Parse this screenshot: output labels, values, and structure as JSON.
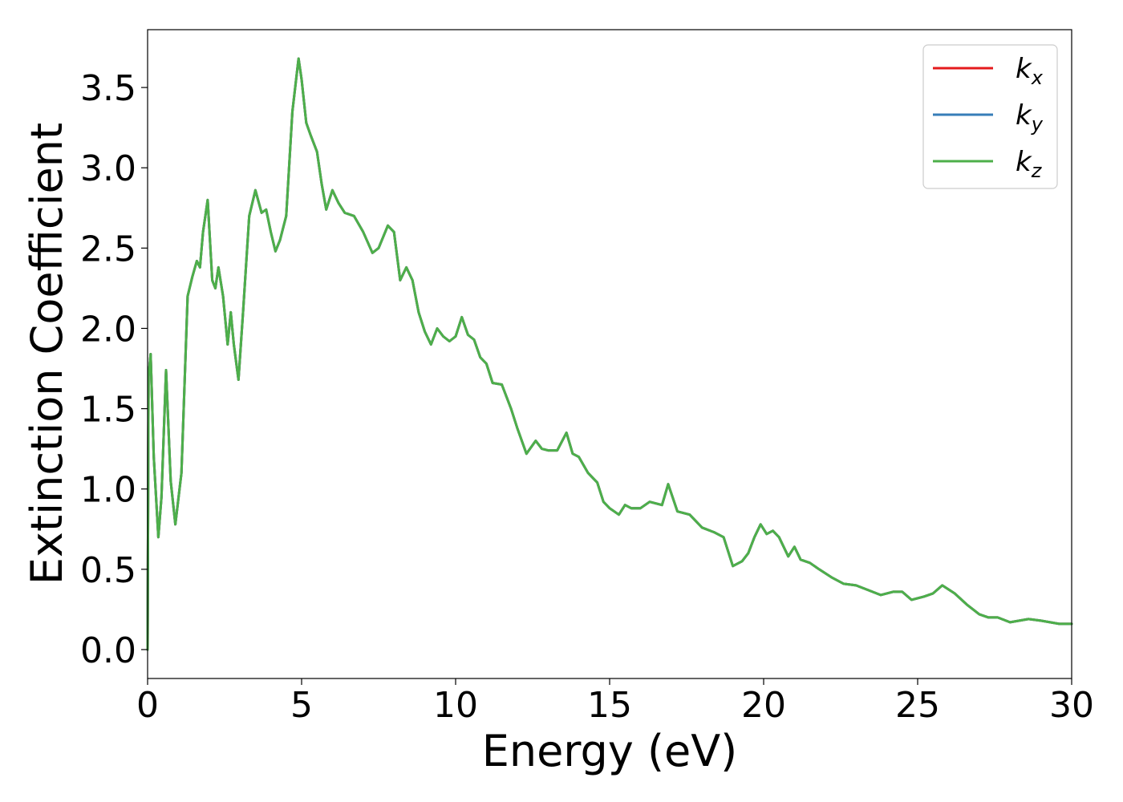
{
  "chart_data": {
    "type": "line",
    "xlabel": "Energy (eV)",
    "ylabel": "Extinction Coefficient",
    "xlim": [
      0,
      30
    ],
    "ylim": [
      -0.18,
      3.86
    ],
    "xticks": [
      0,
      5,
      10,
      15,
      20,
      25,
      30
    ],
    "xtick_labels": [
      "0",
      "5",
      "10",
      "15",
      "20",
      "25",
      "30"
    ],
    "yticks": [
      0.0,
      0.5,
      1.0,
      1.5,
      2.0,
      2.5,
      3.0,
      3.5
    ],
    "ytick_labels": [
      "0.0",
      "0.5",
      "1.0",
      "1.5",
      "2.0",
      "2.5",
      "3.0",
      "3.5"
    ],
    "grid": false,
    "legend_position": "top-right",
    "series": [
      {
        "name": "k_x",
        "label_base": "k",
        "label_sub": "x",
        "color": "#e41a1c",
        "x": [
          0.0,
          0.03,
          0.1,
          0.2,
          0.35,
          0.45,
          0.6,
          0.75,
          0.9,
          1.1,
          1.3,
          1.45,
          1.6,
          1.7,
          1.8,
          1.95,
          2.1,
          2.2,
          2.3,
          2.45,
          2.6,
          2.7,
          2.8,
          2.95,
          3.1,
          3.3,
          3.5,
          3.7,
          3.85,
          4.0,
          4.15,
          4.3,
          4.5,
          4.7,
          4.9,
          5.0,
          5.15,
          5.3,
          5.5,
          5.65,
          5.8,
          6.0,
          6.2,
          6.4,
          6.7,
          7.0,
          7.3,
          7.5,
          7.8,
          8.0,
          8.2,
          8.4,
          8.6,
          8.8,
          9.0,
          9.2,
          9.4,
          9.6,
          9.8,
          10.0,
          10.2,
          10.4,
          10.6,
          10.8,
          11.0,
          11.2,
          11.5,
          11.8,
          12.0,
          12.3,
          12.6,
          12.8,
          13.0,
          13.3,
          13.6,
          13.8,
          14.0,
          14.3,
          14.6,
          14.8,
          15.0,
          15.3,
          15.5,
          15.7,
          16.0,
          16.3,
          16.7,
          16.9,
          17.2,
          17.6,
          18.0,
          18.4,
          18.7,
          19.0,
          19.3,
          19.5,
          19.7,
          19.9,
          20.1,
          20.3,
          20.5,
          20.8,
          21.0,
          21.2,
          21.5,
          21.8,
          22.2,
          22.6,
          23.0,
          23.4,
          23.8,
          24.2,
          24.5,
          24.8,
          25.2,
          25.5,
          25.8,
          26.2,
          26.6,
          27.0,
          27.3,
          27.6,
          28.0,
          28.3,
          28.6,
          29.0,
          29.3,
          29.6,
          30.0
        ],
        "y": [
          0.0,
          1.7,
          1.84,
          1.2,
          0.7,
          0.95,
          1.74,
          1.05,
          0.78,
          1.1,
          2.2,
          2.32,
          2.42,
          2.38,
          2.6,
          2.8,
          2.3,
          2.25,
          2.38,
          2.2,
          1.9,
          2.1,
          1.9,
          1.68,
          2.1,
          2.7,
          2.86,
          2.72,
          2.74,
          2.6,
          2.48,
          2.55,
          2.7,
          3.35,
          3.68,
          3.55,
          3.28,
          3.2,
          3.1,
          2.9,
          2.74,
          2.86,
          2.78,
          2.72,
          2.7,
          2.6,
          2.47,
          2.5,
          2.64,
          2.6,
          2.3,
          2.38,
          2.3,
          2.1,
          1.98,
          1.9,
          2.0,
          1.95,
          1.92,
          1.95,
          2.07,
          1.96,
          1.93,
          1.82,
          1.78,
          1.66,
          1.65,
          1.5,
          1.38,
          1.22,
          1.3,
          1.25,
          1.24,
          1.24,
          1.35,
          1.22,
          1.2,
          1.1,
          1.04,
          0.92,
          0.88,
          0.84,
          0.9,
          0.88,
          0.88,
          0.92,
          0.9,
          1.03,
          0.86,
          0.84,
          0.76,
          0.73,
          0.7,
          0.52,
          0.55,
          0.6,
          0.7,
          0.78,
          0.72,
          0.74,
          0.7,
          0.58,
          0.64,
          0.56,
          0.54,
          0.5,
          0.45,
          0.41,
          0.4,
          0.37,
          0.34,
          0.36,
          0.36,
          0.31,
          0.33,
          0.35,
          0.4,
          0.35,
          0.28,
          0.22,
          0.2,
          0.2,
          0.17,
          0.18,
          0.19,
          0.18,
          0.17,
          0.16,
          0.16
        ]
      },
      {
        "name": "k_y",
        "label_base": "k",
        "label_sub": "y",
        "color": "#377eb8",
        "x": [
          0.0,
          0.03,
          0.1,
          0.2,
          0.35,
          0.45,
          0.6,
          0.75,
          0.9,
          1.1,
          1.3,
          1.45,
          1.6,
          1.7,
          1.8,
          1.95,
          2.1,
          2.2,
          2.3,
          2.45,
          2.6,
          2.7,
          2.8,
          2.95,
          3.1,
          3.3,
          3.5,
          3.7,
          3.85,
          4.0,
          4.15,
          4.3,
          4.5,
          4.7,
          4.9,
          5.0,
          5.15,
          5.3,
          5.5,
          5.65,
          5.8,
          6.0,
          6.2,
          6.4,
          6.7,
          7.0,
          7.3,
          7.5,
          7.8,
          8.0,
          8.2,
          8.4,
          8.6,
          8.8,
          9.0,
          9.2,
          9.4,
          9.6,
          9.8,
          10.0,
          10.2,
          10.4,
          10.6,
          10.8,
          11.0,
          11.2,
          11.5,
          11.8,
          12.0,
          12.3,
          12.6,
          12.8,
          13.0,
          13.3,
          13.6,
          13.8,
          14.0,
          14.3,
          14.6,
          14.8,
          15.0,
          15.3,
          15.5,
          15.7,
          16.0,
          16.3,
          16.7,
          16.9,
          17.2,
          17.6,
          18.0,
          18.4,
          18.7,
          19.0,
          19.3,
          19.5,
          19.7,
          19.9,
          20.1,
          20.3,
          20.5,
          20.8,
          21.0,
          21.2,
          21.5,
          21.8,
          22.2,
          22.6,
          23.0,
          23.4,
          23.8,
          24.2,
          24.5,
          24.8,
          25.2,
          25.5,
          25.8,
          26.2,
          26.6,
          27.0,
          27.3,
          27.6,
          28.0,
          28.3,
          28.6,
          29.0,
          29.3,
          29.6,
          30.0
        ],
        "y": [
          0.0,
          1.7,
          1.84,
          1.2,
          0.7,
          0.95,
          1.74,
          1.05,
          0.78,
          1.1,
          2.2,
          2.32,
          2.42,
          2.38,
          2.6,
          2.8,
          2.3,
          2.25,
          2.38,
          2.2,
          1.9,
          2.1,
          1.9,
          1.68,
          2.1,
          2.7,
          2.86,
          2.72,
          2.74,
          2.6,
          2.48,
          2.55,
          2.7,
          3.35,
          3.68,
          3.55,
          3.28,
          3.2,
          3.1,
          2.9,
          2.74,
          2.86,
          2.78,
          2.72,
          2.7,
          2.6,
          2.47,
          2.5,
          2.64,
          2.6,
          2.3,
          2.38,
          2.3,
          2.1,
          1.98,
          1.9,
          2.0,
          1.95,
          1.92,
          1.95,
          2.07,
          1.96,
          1.93,
          1.82,
          1.78,
          1.66,
          1.65,
          1.5,
          1.38,
          1.22,
          1.3,
          1.25,
          1.24,
          1.24,
          1.35,
          1.22,
          1.2,
          1.1,
          1.04,
          0.92,
          0.88,
          0.84,
          0.9,
          0.88,
          0.88,
          0.92,
          0.9,
          1.03,
          0.86,
          0.84,
          0.76,
          0.73,
          0.7,
          0.52,
          0.55,
          0.6,
          0.7,
          0.78,
          0.72,
          0.74,
          0.7,
          0.58,
          0.64,
          0.56,
          0.54,
          0.5,
          0.45,
          0.41,
          0.4,
          0.37,
          0.34,
          0.36,
          0.36,
          0.31,
          0.33,
          0.35,
          0.4,
          0.35,
          0.28,
          0.22,
          0.2,
          0.2,
          0.17,
          0.18,
          0.19,
          0.18,
          0.17,
          0.16,
          0.16
        ]
      },
      {
        "name": "k_z",
        "label_base": "k",
        "label_sub": "z",
        "color": "#4daf4a",
        "x": [
          0.0,
          0.03,
          0.1,
          0.2,
          0.35,
          0.45,
          0.6,
          0.75,
          0.9,
          1.1,
          1.3,
          1.45,
          1.6,
          1.7,
          1.8,
          1.95,
          2.1,
          2.2,
          2.3,
          2.45,
          2.6,
          2.7,
          2.8,
          2.95,
          3.1,
          3.3,
          3.5,
          3.7,
          3.85,
          4.0,
          4.15,
          4.3,
          4.5,
          4.7,
          4.9,
          5.0,
          5.15,
          5.3,
          5.5,
          5.65,
          5.8,
          6.0,
          6.2,
          6.4,
          6.7,
          7.0,
          7.3,
          7.5,
          7.8,
          8.0,
          8.2,
          8.4,
          8.6,
          8.8,
          9.0,
          9.2,
          9.4,
          9.6,
          9.8,
          10.0,
          10.2,
          10.4,
          10.6,
          10.8,
          11.0,
          11.2,
          11.5,
          11.8,
          12.0,
          12.3,
          12.6,
          12.8,
          13.0,
          13.3,
          13.6,
          13.8,
          14.0,
          14.3,
          14.6,
          14.8,
          15.0,
          15.3,
          15.5,
          15.7,
          16.0,
          16.3,
          16.7,
          16.9,
          17.2,
          17.6,
          18.0,
          18.4,
          18.7,
          19.0,
          19.3,
          19.5,
          19.7,
          19.9,
          20.1,
          20.3,
          20.5,
          20.8,
          21.0,
          21.2,
          21.5,
          21.8,
          22.2,
          22.6,
          23.0,
          23.4,
          23.8,
          24.2,
          24.5,
          24.8,
          25.2,
          25.5,
          25.8,
          26.2,
          26.6,
          27.0,
          27.3,
          27.6,
          28.0,
          28.3,
          28.6,
          29.0,
          29.3,
          29.6,
          30.0
        ],
        "y": [
          0.0,
          1.7,
          1.84,
          1.2,
          0.7,
          0.95,
          1.74,
          1.05,
          0.78,
          1.1,
          2.2,
          2.32,
          2.42,
          2.38,
          2.6,
          2.8,
          2.3,
          2.25,
          2.38,
          2.2,
          1.9,
          2.1,
          1.9,
          1.68,
          2.1,
          2.7,
          2.86,
          2.72,
          2.74,
          2.6,
          2.48,
          2.55,
          2.7,
          3.35,
          3.68,
          3.55,
          3.28,
          3.2,
          3.1,
          2.9,
          2.74,
          2.86,
          2.78,
          2.72,
          2.7,
          2.6,
          2.47,
          2.5,
          2.64,
          2.6,
          2.3,
          2.38,
          2.3,
          2.1,
          1.98,
          1.9,
          2.0,
          1.95,
          1.92,
          1.95,
          2.07,
          1.96,
          1.93,
          1.82,
          1.78,
          1.66,
          1.65,
          1.5,
          1.38,
          1.22,
          1.3,
          1.25,
          1.24,
          1.24,
          1.35,
          1.22,
          1.2,
          1.1,
          1.04,
          0.92,
          0.88,
          0.84,
          0.9,
          0.88,
          0.88,
          0.92,
          0.9,
          1.03,
          0.86,
          0.84,
          0.76,
          0.73,
          0.7,
          0.52,
          0.55,
          0.6,
          0.7,
          0.78,
          0.72,
          0.74,
          0.7,
          0.58,
          0.64,
          0.56,
          0.54,
          0.5,
          0.45,
          0.41,
          0.4,
          0.37,
          0.34,
          0.36,
          0.36,
          0.31,
          0.33,
          0.35,
          0.4,
          0.35,
          0.28,
          0.22,
          0.2,
          0.2,
          0.17,
          0.18,
          0.19,
          0.18,
          0.17,
          0.16,
          0.16
        ]
      }
    ]
  }
}
